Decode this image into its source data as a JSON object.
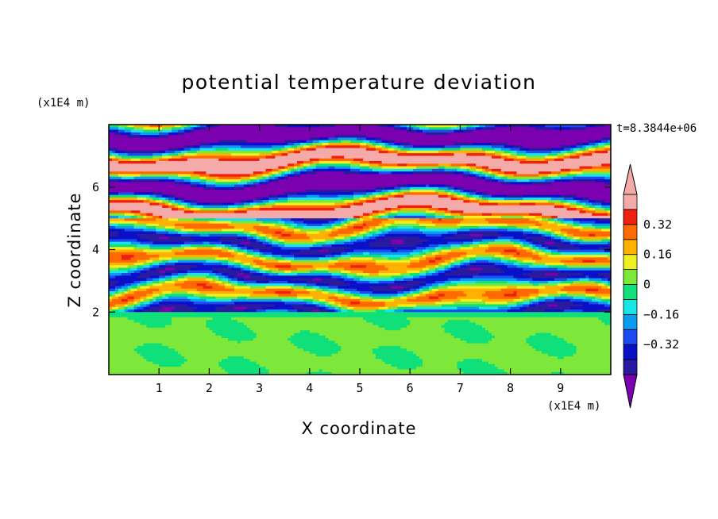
{
  "chart_data": {
    "type": "heatmap",
    "title": "potential temperature deviation",
    "xlabel": "X coordinate",
    "ylabel": "Z coordinate",
    "x_unit": "(x1E4 m)",
    "y_unit": "(x1E4 m)",
    "time_label": "t=8.3844e+06",
    "xlim": [
      0,
      10
    ],
    "ylim": [
      0,
      8
    ],
    "x_ticks": [
      "1",
      "2",
      "3",
      "4",
      "5",
      "6",
      "7",
      "8",
      "9"
    ],
    "y_ticks": [
      "2",
      "4",
      "6"
    ],
    "colorbar": {
      "levels": [
        -0.48,
        -0.4,
        -0.32,
        -0.24,
        -0.16,
        -0.08,
        0,
        0.08,
        0.16,
        0.24,
        0.32,
        0.4,
        0.48
      ],
      "colors": [
        "#7a00b0",
        "#2a1aa0",
        "#0a10c8",
        "#1c4cf0",
        "#0a9cf0",
        "#18e6e6",
        "#10e07a",
        "#7ee83a",
        "#f0f020",
        "#ffb000",
        "#ff6a00",
        "#f02010",
        "#f5aaaa"
      ],
      "tick_labels": [
        "0.32",
        "0.16",
        "0",
        "−0.16",
        "−0.32"
      ],
      "tick_values": [
        0.32,
        0.16,
        0,
        -0.16,
        -0.32
      ],
      "extend": "both"
    }
  }
}
